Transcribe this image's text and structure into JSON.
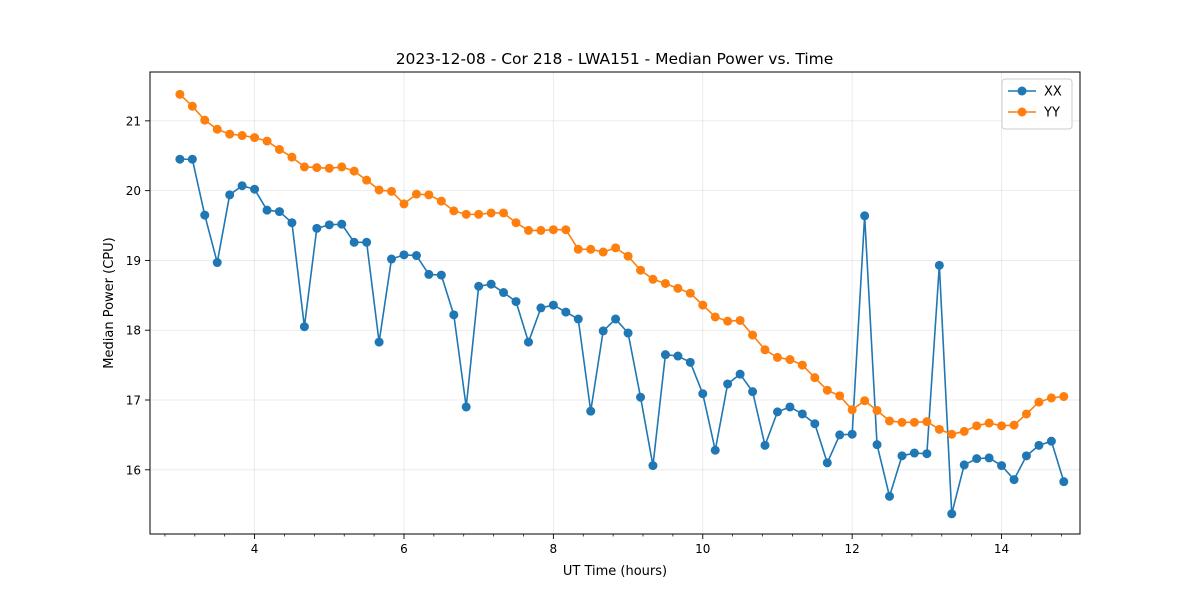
{
  "chart_data": {
    "type": "line",
    "title": "2023-12-08 - Cor 218 - LWA151 - Median Power vs. Time",
    "xlabel": "UT Time (hours)",
    "ylabel": "Median Power (CPU)",
    "xlim": [
      2.6,
      15.05
    ],
    "ylim": [
      15.08,
      21.7
    ],
    "xticks": [
      4,
      6,
      8,
      10,
      12,
      14
    ],
    "xtick_labels": [
      "4",
      "6",
      "8",
      "10",
      "12",
      "14"
    ],
    "yticks": [
      16,
      17,
      18,
      19,
      20,
      21
    ],
    "ytick_labels": [
      "16",
      "17",
      "18",
      "19",
      "20",
      "21"
    ],
    "x_minor_step": 0.4,
    "grid": true,
    "legend_position": "top-right",
    "x": [
      3.0,
      3.167,
      3.333,
      3.5,
      3.667,
      3.833,
      4.0,
      4.167,
      4.333,
      4.5,
      4.667,
      4.833,
      5.0,
      5.167,
      5.333,
      5.5,
      5.667,
      5.833,
      6.0,
      6.167,
      6.333,
      6.5,
      6.667,
      6.833,
      7.0,
      7.167,
      7.333,
      7.5,
      7.667,
      7.833,
      8.0,
      8.167,
      8.333,
      8.5,
      8.667,
      8.833,
      9.0,
      9.167,
      9.333,
      9.5,
      9.667,
      9.833,
      10.0,
      10.167,
      10.333,
      10.5,
      10.667,
      10.833,
      11.0,
      11.167,
      11.333,
      11.5,
      11.667,
      11.833,
      12.0,
      12.167,
      12.333,
      12.5,
      12.667,
      12.833,
      13.0,
      13.167,
      13.333,
      13.5,
      13.667,
      13.833,
      14.0,
      14.167,
      14.333,
      14.5,
      14.667,
      14.833
    ],
    "series": [
      {
        "name": "XX",
        "color": "#1f77b4",
        "values": [
          20.45,
          20.45,
          19.65,
          18.97,
          19.94,
          20.07,
          20.02,
          19.72,
          19.7,
          19.54,
          18.05,
          19.46,
          19.51,
          19.52,
          19.26,
          19.26,
          17.83,
          19.02,
          19.08,
          19.07,
          18.8,
          18.79,
          18.22,
          16.9,
          18.63,
          18.66,
          18.54,
          18.41,
          17.83,
          18.32,
          18.36,
          18.26,
          18.16,
          16.84,
          17.99,
          18.16,
          17.96,
          17.04,
          16.06,
          17.65,
          17.63,
          17.54,
          17.09,
          16.28,
          17.23,
          17.37,
          17.12,
          16.35,
          16.83,
          16.9,
          16.8,
          16.66,
          16.1,
          16.5,
          16.51,
          19.64,
          16.36,
          15.62,
          16.2,
          16.24,
          16.23,
          18.93,
          15.37,
          16.07,
          16.16,
          16.17,
          16.06,
          15.86,
          16.2,
          16.35,
          16.41,
          15.83
        ]
      },
      {
        "name": "YY",
        "color": "#ff7f0e",
        "values": [
          21.38,
          21.21,
          21.01,
          20.88,
          20.81,
          20.79,
          20.76,
          20.71,
          20.59,
          20.48,
          20.34,
          20.33,
          20.32,
          20.34,
          20.28,
          20.15,
          20.01,
          19.99,
          19.81,
          19.95,
          19.94,
          19.85,
          19.71,
          19.66,
          19.66,
          19.68,
          19.68,
          19.54,
          19.43,
          19.43,
          19.44,
          19.44,
          19.16,
          19.16,
          19.12,
          19.18,
          19.06,
          18.86,
          18.73,
          18.67,
          18.6,
          18.53,
          18.36,
          18.19,
          18.13,
          18.14,
          17.93,
          17.72,
          17.61,
          17.58,
          17.5,
          17.32,
          17.14,
          17.06,
          16.86,
          16.99,
          16.85,
          16.7,
          16.68,
          16.68,
          16.69,
          16.58,
          16.51,
          16.55,
          16.63,
          16.67,
          16.63,
          16.64,
          16.8,
          16.97,
          17.03,
          17.05
        ]
      }
    ]
  }
}
